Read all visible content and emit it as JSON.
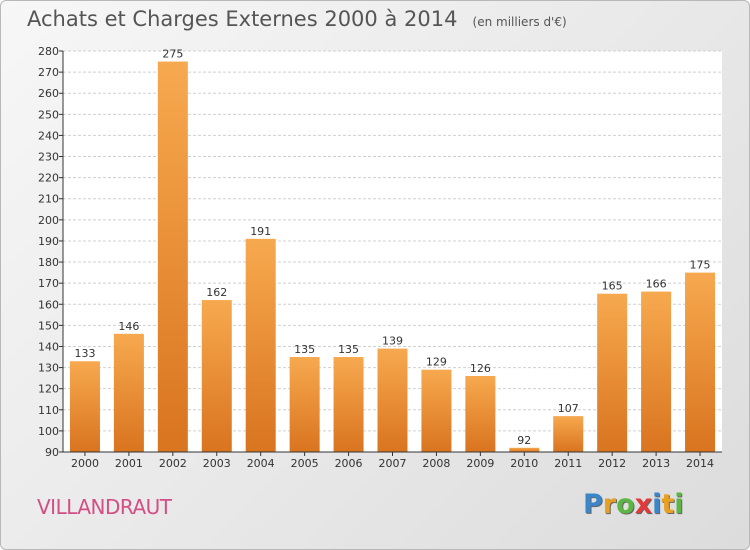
{
  "chart_data": {
    "type": "bar",
    "title": "Achats et Charges Externes 2000 à 2014",
    "subtitle": "(en milliers d'€)",
    "categories": [
      "2000",
      "2001",
      "2002",
      "2003",
      "2004",
      "2005",
      "2006",
      "2007",
      "2008",
      "2009",
      "2010",
      "2011",
      "2012",
      "2013",
      "2014"
    ],
    "values": [
      133,
      146,
      275,
      162,
      191,
      135,
      135,
      139,
      129,
      126,
      92,
      107,
      165,
      166,
      175
    ],
    "ylim": [
      90,
      280
    ],
    "yticks": [
      90,
      100,
      110,
      120,
      130,
      140,
      150,
      160,
      170,
      180,
      190,
      200,
      210,
      220,
      230,
      240,
      250,
      260,
      270,
      280
    ],
    "grid": true,
    "bar_color_light": "#f7a94f",
    "bar_color_dark": "#d9741f"
  },
  "place": "VILLANDRAUT",
  "logo": {
    "letters": [
      "P",
      "r",
      "o",
      "x",
      "i",
      "t",
      "i"
    ],
    "colors": [
      "#3a86c8",
      "#e8a020",
      "#5db543",
      "#e23a3a",
      "#3a86c8",
      "#e8a020",
      "#5db543"
    ]
  },
  "colors": {
    "title": "#555555",
    "place": "#d24f86",
    "grid": "#d0d0d0",
    "axis": "#333333"
  }
}
